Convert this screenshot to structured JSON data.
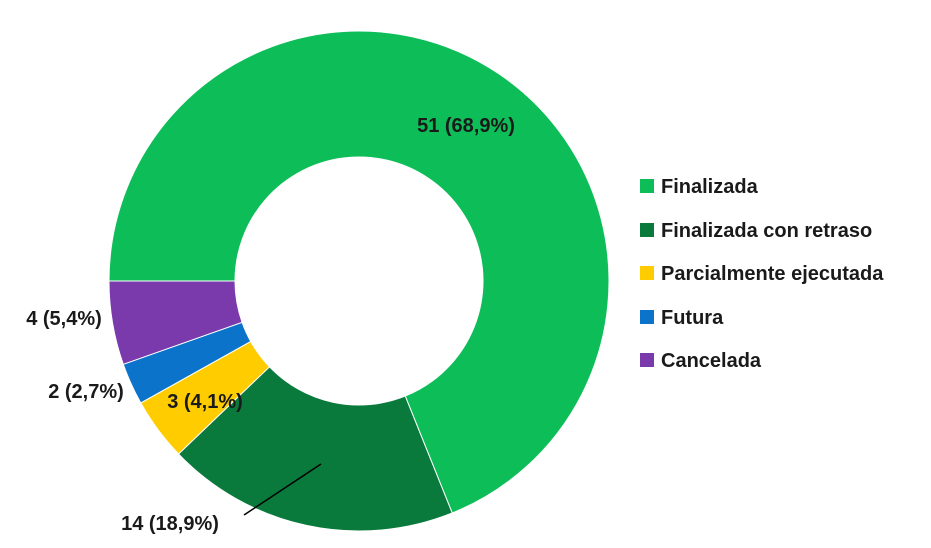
{
  "chart_data": {
    "type": "pie",
    "donut": true,
    "start": "bottom-left, clockwise",
    "legend_position": "right",
    "categories": [
      "Finalizada",
      "Finalizada con retraso",
      "Parcialmente ejecutada",
      "Futura",
      "Cancelada"
    ],
    "values": [
      51,
      14,
      3,
      2,
      4
    ],
    "data_labels": [
      "51 (68,9%)",
      "14 (18,9%)",
      "3 (4,1%)",
      "2 (2,7%)",
      "4 (5,4%)"
    ],
    "colors": [
      "#0dbd58",
      "#097a3c",
      "#ffcc00",
      "#0b73c9",
      "#7b3aab"
    ]
  }
}
